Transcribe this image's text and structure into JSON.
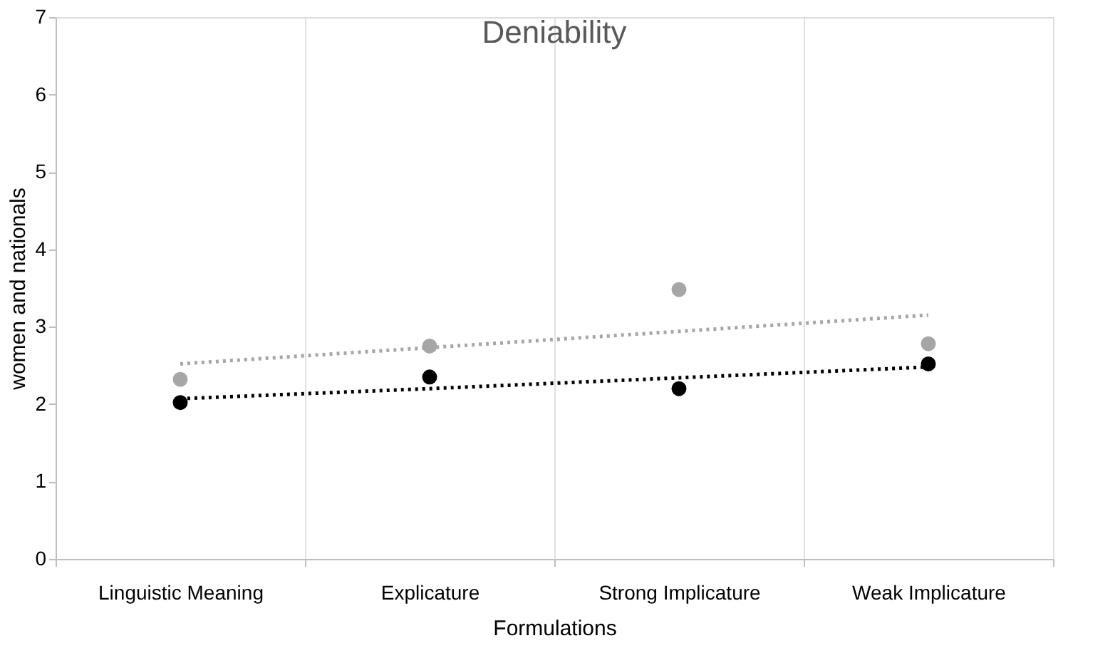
{
  "chart_data": {
    "type": "scatter",
    "title": "Deniability",
    "xlabel": "Formulations",
    "ylabel": "women and nationals",
    "categories": [
      "Linguistic Meaning",
      "Explicature",
      "Strong Implicature",
      "Weak Implicature"
    ],
    "series": [
      {
        "color": "#a6a6a6",
        "marker": "circle",
        "values": [
          2.32,
          2.75,
          3.48,
          2.78
        ]
      },
      {
        "color": "#000000",
        "marker": "circle",
        "values": [
          2.02,
          2.35,
          2.2,
          2.52
        ]
      },
      {
        "type": "line",
        "color": "#a6a6a6",
        "marker": "none",
        "line_style": "dotted",
        "values": [
          2.52,
          2.73,
          2.94,
          3.15
        ]
      },
      {
        "type": "line",
        "color": "#000000",
        "marker": "none",
        "line_style": "dotted",
        "values": [
          2.07,
          2.2,
          2.34,
          2.48
        ]
      }
    ],
    "ylim": [
      0,
      7
    ],
    "yticks": [
      0,
      1,
      2,
      3,
      4,
      5,
      6,
      7
    ],
    "grid": "x"
  }
}
